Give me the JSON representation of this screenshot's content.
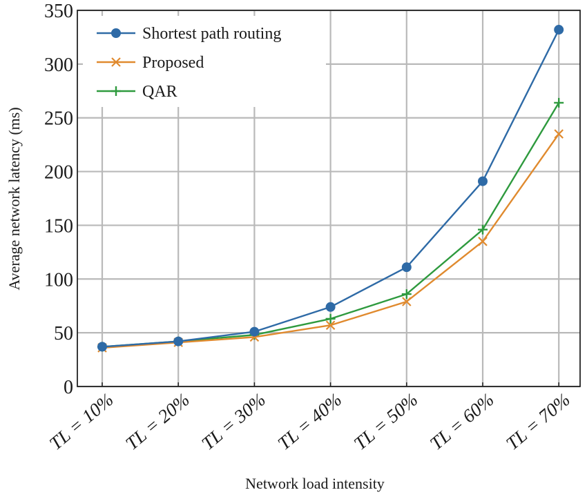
{
  "chart_data": {
    "type": "line",
    "xlabel": "Network load intensity",
    "ylabel": "Average network latency (ms)",
    "categories": [
      "TL = 10%",
      "TL = 20%",
      "TL = 30%",
      "TL = 40%",
      "TL = 50%",
      "TL = 60%",
      "TL = 70%"
    ],
    "ylim": [
      0,
      350
    ],
    "yticks": [
      0,
      50,
      100,
      150,
      200,
      250,
      300,
      350
    ],
    "grid": true,
    "legend_position": "top-left",
    "series": [
      {
        "name": "Shortest path routing",
        "color": "#2e6aa6",
        "marker": "circle",
        "values": [
          37,
          42,
          51,
          74,
          111,
          191,
          332
        ]
      },
      {
        "name": "Proposed",
        "color": "#e08a2e",
        "marker": "x",
        "values": [
          36,
          41,
          46,
          57,
          79,
          135,
          235
        ]
      },
      {
        "name": "QAR",
        "color": "#2e9a3e",
        "marker": "plus",
        "values": [
          37,
          42,
          48,
          63,
          86,
          146,
          264
        ]
      }
    ]
  }
}
